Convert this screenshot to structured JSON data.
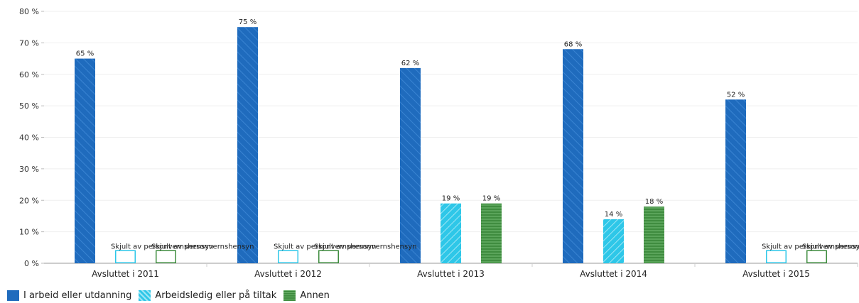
{
  "chart_data": {
    "type": "bar",
    "categories": [
      "Avsluttet i 2011",
      "Avsluttet i 2012",
      "Avsluttet i 2013",
      "Avsluttet i 2014",
      "Avsluttet i 2015"
    ],
    "series": [
      {
        "name": "I arbeid eller utdanning",
        "values": [
          65,
          75,
          62,
          68,
          52
        ],
        "labels": [
          "65 %",
          "75 %",
          "62 %",
          "68 %",
          "52 %"
        ],
        "color": "#1f6bbd",
        "pattern": "diagonal-hatch"
      },
      {
        "name": "Arbeidsledig eller på tiltak",
        "values": [
          null,
          null,
          19,
          14,
          null
        ],
        "labels": [
          "Skjult av personvernshensyn",
          "Skjult av personvernshensyn",
          "19 %",
          "14 %",
          "Skjult av personvernshensyn"
        ],
        "color": "#2ec7e8",
        "pattern": "diagonal-stripe"
      },
      {
        "name": "Annen",
        "values": [
          null,
          null,
          19,
          18,
          null
        ],
        "labels": [
          "Skjult av personvernshensyn",
          "Skjult av personvernshensyn",
          "19 %",
          "18 %",
          "Skjult av personvernshensyn"
        ],
        "color": "#3f8c3f",
        "pattern": "horizontal-stripe"
      }
    ],
    "yticks": [
      "0 %",
      "10 %",
      "20 %",
      "30 %",
      "40 %",
      "50 %",
      "60 %",
      "70 %",
      "80 %"
    ],
    "ylim": [
      0,
      80
    ],
    "grid": true,
    "legend_position": "bottom-left",
    "hidden_marker_value": 4
  }
}
